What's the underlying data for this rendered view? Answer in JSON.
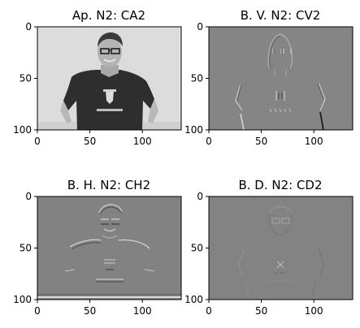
{
  "figure": {
    "layout": "2x2 grid of grayscale image subplots",
    "colormap": "gray"
  },
  "chart_data": [
    {
      "type": "heatmap",
      "title": "Ap. N2: CA2",
      "content": "approximation coefficients (low-pass) — grayscale photo of man in dark Ferrari t-shirt on light background",
      "xlim": [
        0,
        137
      ],
      "ylim": [
        100,
        0
      ],
      "xticks": [
        0,
        50,
        100
      ],
      "yticks": [
        0,
        50,
        100
      ],
      "background": "#dcdcdc",
      "grid": false
    },
    {
      "type": "heatmap",
      "title": "B. V. N2: CV2",
      "content": "vertical detail coefficients — edge map on mid-gray background",
      "xlim": [
        0,
        137
      ],
      "ylim": [
        100,
        0
      ],
      "xticks": [
        0,
        50,
        100
      ],
      "yticks": [
        0,
        50,
        100
      ],
      "background": "#858585",
      "grid": false
    },
    {
      "type": "heatmap",
      "title": "B. H. N2: CH2",
      "content": "horizontal detail coefficients — edge map on mid-gray background",
      "xlim": [
        0,
        137
      ],
      "ylim": [
        100,
        0
      ],
      "xticks": [
        0,
        50,
        100
      ],
      "yticks": [
        0,
        50,
        100
      ],
      "background": "#828282",
      "grid": false
    },
    {
      "type": "heatmap",
      "title": "B. D. N2: CD2",
      "content": "diagonal detail coefficients — faint edge map on mid-gray background",
      "xlim": [
        0,
        137
      ],
      "ylim": [
        100,
        0
      ],
      "xticks": [
        0,
        50,
        100
      ],
      "yticks": [
        0,
        50,
        100
      ],
      "background": "#838383",
      "grid": false
    }
  ]
}
